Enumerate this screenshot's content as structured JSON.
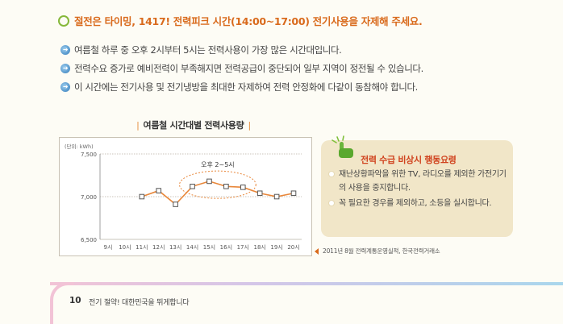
{
  "headline": "절전은 타이밍, 1417! 전력피크 시간(14:00~17:00) 전기사용을 자제해 주세요.",
  "bullets": [
    "여름철 하루 중 오후 2시부터 5시는 전력사용이 가장 많은 시간대입니다.",
    "전력수요 증가로 예비전력이 부족해지면 전력공급이 중단되어 일부 지역이 정전될 수 있습니다.",
    "이 시간에는 전기사용 및 전기냉방을 최대한 자제하여 전력 안정화에 다같이 동참해야 합니다."
  ],
  "chart_title": "여름철 시간대별 전력사용량",
  "chart_data": {
    "type": "line",
    "unit_label": "(단위: kWh)",
    "categories": [
      "9시",
      "10시",
      "11시",
      "12시",
      "13시",
      "14시",
      "15시",
      "16시",
      "17시",
      "18시",
      "19시",
      "20시"
    ],
    "yticks": [
      "6,500",
      "7,000",
      "7,500"
    ],
    "ylim": [
      6500,
      7500
    ],
    "series": [
      {
        "values": [
          null,
          null,
          7000,
          7070,
          6910,
          7120,
          7180,
          7120,
          7110,
          7040,
          7000,
          7040
        ]
      }
    ],
    "annotation": "오후 2~5시",
    "grid": true,
    "line_color": "#e8873a"
  },
  "emergency": {
    "title": "전력 수급 비상시 행동요령",
    "items": [
      "재난상황파악을 위한 TV, 라디오를 제외한 가전기기의 사용을 중지합니다.",
      "꼭 필요한 경우를 제외하고, 소등을 실시합니다."
    ]
  },
  "source": "2011년 8월 전력계통운영실적, 한국전력거래소",
  "footer": {
    "page_number": "10",
    "text": "전기 절약! 대한민국을 뛰게합니다"
  }
}
